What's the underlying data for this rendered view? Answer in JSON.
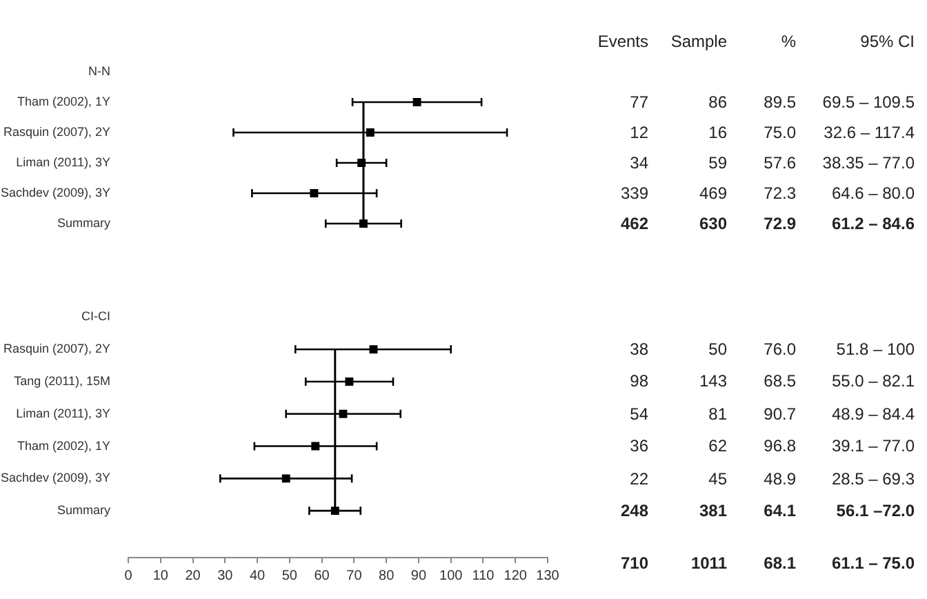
{
  "chart_data": [
    {
      "type": "scatter",
      "orientation": "horizontal",
      "categories": [
        "N-N",
        "Tham (2002), 1Y",
        "Rasquin (2007), 2Y",
        "Liman (2011), 3Y",
        "Sachdev (2009), 3Y",
        "Summary"
      ],
      "values": [
        null,
        89.5,
        75.0,
        72.3,
        57.6,
        72.9
      ],
      "errors": [
        null,
        [
          69.5,
          109.5
        ],
        [
          32.6,
          117.4
        ],
        [
          64.6,
          80.0
        ],
        [
          38.35,
          77.0
        ],
        [
          61.2,
          84.6
        ]
      ],
      "color": "#000000",
      "marker": "square",
      "xlim": [
        0,
        130
      ],
      "xticks": [
        0,
        10,
        20,
        30,
        40,
        50,
        60,
        70,
        80,
        90,
        100,
        110,
        120,
        130
      ],
      "tick_labels": "y",
      "ref_lines": [
        {
          "axis": "x",
          "value": 72.9
        }
      ],
      "annotations": [
        "Events",
        "Sample",
        "%",
        "95% CI",
        "77",
        "86",
        "89.5",
        "69.5 – 109.5",
        "12",
        "16",
        "75.0",
        "32.6 – 117.4",
        "34",
        "59",
        "57.6",
        "38.35 – 77.0",
        "339",
        "469",
        "72.3",
        "64.6 – 80.0",
        "462",
        "630",
        "72.9",
        "61.2 – 84.6"
      ]
    },
    {
      "type": "scatter",
      "orientation": "horizontal",
      "categories": [
        "CI-CI",
        "Rasquin (2007), 2Y",
        "Tang (2011), 15M",
        "Liman (2011), 3Y",
        "Tham (2002), 1Y",
        "Sachdev (2009), 3Y",
        "Summary"
      ],
      "values": [
        null,
        76.0,
        68.5,
        66.6,
        58.0,
        48.9,
        64.1
      ],
      "errors": [
        null,
        [
          51.8,
          100
        ],
        [
          55.0,
          82.1
        ],
        [
          48.9,
          84.4
        ],
        [
          39.1,
          77.0
        ],
        [
          28.5,
          69.3
        ],
        [
          56.1,
          72.0
        ]
      ],
      "color": "#000000",
      "marker": "square",
      "xlim": [
        0,
        130
      ],
      "xticks": [
        0,
        10,
        20,
        30,
        40,
        50,
        60,
        70,
        80,
        90,
        100,
        110,
        120,
        130
      ],
      "ref_lines": [
        {
          "axis": "x",
          "value": 64.1
        }
      ],
      "annotations": [
        "38",
        "50",
        "76.0",
        "51.8 – 100",
        "98",
        "143",
        "68.5",
        "55.0 – 82.1",
        "54",
        "81",
        "90.7",
        "48.9 – 84.4",
        "36",
        "62",
        "96.8",
        "39.1 – 77.0",
        "22",
        "45",
        "48.9",
        "28.5 – 69.3",
        "248",
        "381",
        "64.1",
        "56.1 –72.0",
        "710",
        "1011",
        "68.1",
        "61.1 – 75.0"
      ]
    }
  ]
}
